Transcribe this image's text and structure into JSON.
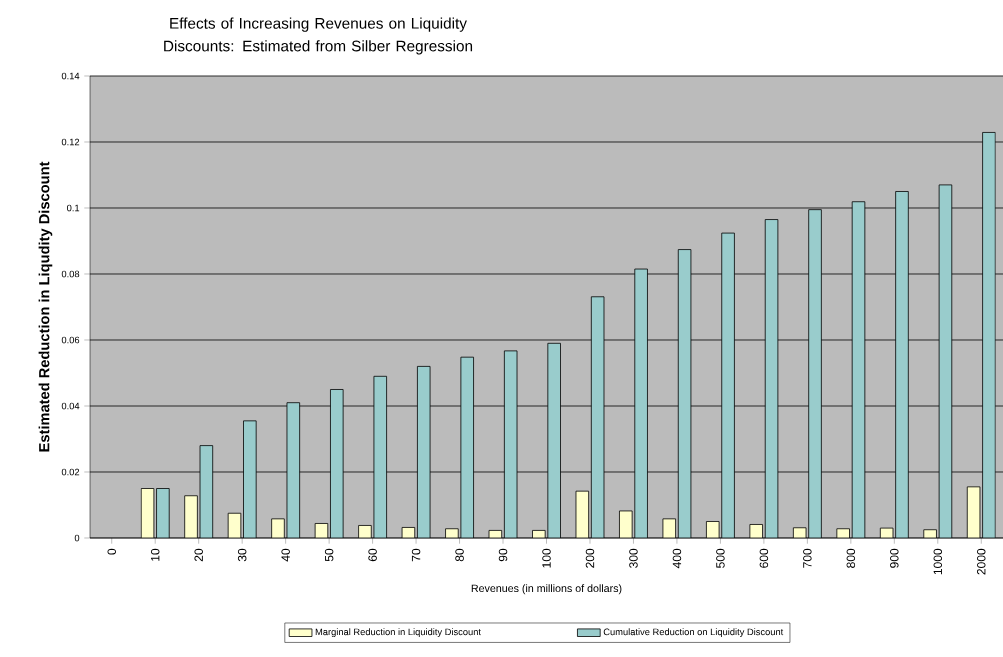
{
  "chart_data": {
    "type": "bar",
    "title": "Effects of Increasing Revenues on Liquidity Discounts: Estimated from Silber Regression",
    "xlabel": "Revenues (in millions of dollars)",
    "ylabel": "Estimated Reduction in Liqudity Discount",
    "categories": [
      "0",
      "10",
      "20",
      "30",
      "40",
      "50",
      "60",
      "70",
      "80",
      "90",
      "100",
      "200",
      "300",
      "400",
      "500",
      "600",
      "700",
      "800",
      "900",
      "1000",
      "2000"
    ],
    "series": [
      {
        "name": "Marginal Reduction in Liquidity Discount",
        "color": "#ffffcc",
        "values": [
          null,
          0.015,
          0.0128,
          0.0075,
          0.0058,
          0.0044,
          0.0038,
          0.0032,
          0.0028,
          0.0023,
          0.0023,
          0.0142,
          0.0082,
          0.0058,
          0.005,
          0.0041,
          0.0031,
          0.0028,
          0.003,
          0.0025,
          0.0155
        ]
      },
      {
        "name": "Cumulative Reduction on Liquidity Discount",
        "color": "#99cccc",
        "values": [
          null,
          0.015,
          0.028,
          0.0355,
          0.041,
          0.045,
          0.049,
          0.052,
          0.0548,
          0.0567,
          0.059,
          0.0731,
          0.0815,
          0.0874,
          0.0924,
          0.0965,
          0.0995,
          0.1019,
          0.105,
          0.107,
          0.1229
        ]
      }
    ],
    "ylim": [
      0,
      0.14
    ],
    "yticks": [
      0,
      0.02,
      0.04,
      0.06,
      0.08,
      0.1,
      0.12,
      0.14
    ],
    "grid": "y",
    "legend": "bottom"
  }
}
